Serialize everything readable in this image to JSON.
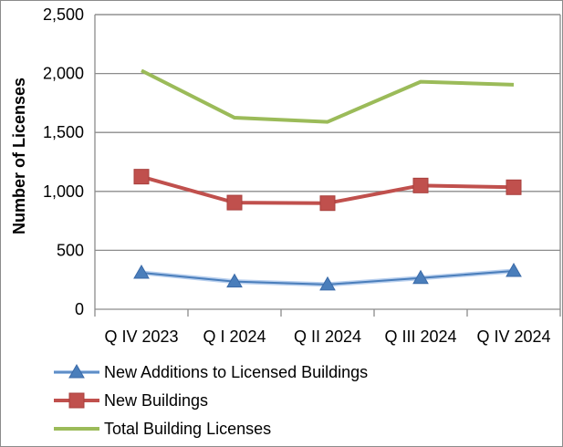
{
  "chart_data": {
    "type": "line",
    "title": "",
    "xlabel": "",
    "ylabel": "Number of Licenses",
    "categories": [
      "Q IV 2023",
      "Q I 2024",
      "Q II 2024",
      "Q III 2024",
      "Q IV 2024"
    ],
    "ylim": [
      0,
      2500
    ],
    "yticks": [
      0,
      500,
      1000,
      1500,
      2000,
      2500
    ],
    "ytick_labels": [
      "0",
      "500",
      "1,000",
      "1,500",
      "2,000",
      "2,500"
    ],
    "grid": true,
    "legend_position": "bottom",
    "series": [
      {
        "name": "New Additions to Licensed Buildings",
        "values": [
          310,
          235,
          210,
          265,
          325
        ],
        "color": "#4a7ebb",
        "marker": "triangle"
      },
      {
        "name": "New Buildings",
        "values": [
          1125,
          905,
          900,
          1050,
          1035
        ],
        "color": "#c0504d",
        "marker": "square"
      },
      {
        "name": "Total Building Licenses",
        "values": [
          2025,
          1625,
          1590,
          1930,
          1905
        ],
        "color": "#9bbb59",
        "marker": "none"
      }
    ]
  }
}
